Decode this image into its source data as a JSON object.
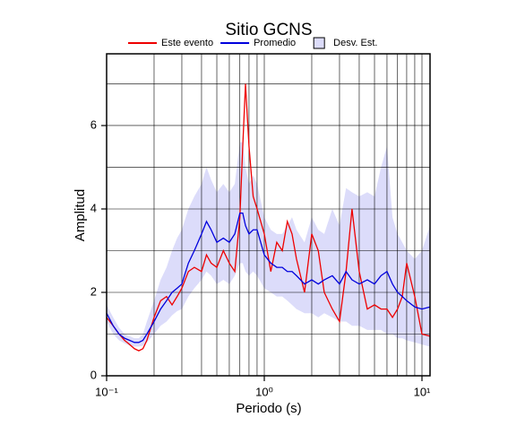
{
  "chart_data": {
    "type": "line",
    "title": "Sitio GCNS",
    "xlabel": "Periodo (s)",
    "ylabel": "Amplitud",
    "xscale": "log",
    "grid": true,
    "xlim": [
      0.1,
      11.25
    ],
    "ylim": [
      0,
      7.72
    ],
    "xticks": [
      {
        "value": 0.1,
        "label": "10⁻¹"
      },
      {
        "value": 1,
        "label": "10⁰"
      },
      {
        "value": 10,
        "label": "10¹"
      }
    ],
    "xminor": [
      0.2,
      0.3,
      0.4,
      0.5,
      0.6,
      0.7,
      0.8,
      0.9,
      2,
      3,
      4,
      5,
      6,
      7,
      8,
      9
    ],
    "yticks": [
      0,
      2,
      4,
      6
    ],
    "yminor": [
      1,
      3,
      5,
      7
    ],
    "x": [
      0.1,
      0.11,
      0.12,
      0.13,
      0.14,
      0.15,
      0.16,
      0.17,
      0.18,
      0.2,
      0.22,
      0.24,
      0.26,
      0.28,
      0.3,
      0.33,
      0.36,
      0.4,
      0.43,
      0.46,
      0.5,
      0.55,
      0.6,
      0.65,
      0.7,
      0.73,
      0.76,
      0.8,
      0.85,
      0.9,
      1.0,
      1.1,
      1.2,
      1.3,
      1.4,
      1.5,
      1.6,
      1.8,
      2.0,
      2.2,
      2.4,
      2.7,
      3.0,
      3.3,
      3.6,
      4.0,
      4.5,
      5.0,
      5.5,
      6.0,
      6.5,
      7.0,
      7.5,
      8.0,
      9.0,
      10,
      11.25
    ],
    "band": {
      "name": "Desv. Est.",
      "color": "#dcdcfa",
      "upper": [
        1.7,
        1.4,
        1.15,
        1.0,
        0.95,
        0.9,
        0.9,
        1.0,
        1.3,
        1.8,
        2.3,
        2.6,
        3.0,
        3.3,
        3.5,
        4.0,
        4.3,
        4.6,
        5.0,
        4.7,
        4.4,
        4.6,
        4.4,
        4.6,
        5.6,
        5.6,
        5.0,
        4.6,
        4.8,
        4.6,
        3.8,
        3.5,
        3.4,
        3.4,
        3.6,
        3.8,
        3.5,
        3.2,
        3.8,
        3.5,
        3.4,
        4.0,
        3.6,
        4.5,
        4.4,
        4.3,
        4.4,
        4.3,
        5.0,
        5.5,
        3.8,
        3.4,
        3.2,
        3.0,
        2.8,
        3.0,
        3.6
      ],
      "lower": [
        1.3,
        1.0,
        0.85,
        0.78,
        0.72,
        0.7,
        0.7,
        0.72,
        0.8,
        1.0,
        1.2,
        1.3,
        1.45,
        1.55,
        1.6,
        1.9,
        2.1,
        2.3,
        2.5,
        2.4,
        2.2,
        2.3,
        2.2,
        2.4,
        2.7,
        2.7,
        2.5,
        2.4,
        2.5,
        2.4,
        2.1,
        2.0,
        1.9,
        1.9,
        1.8,
        1.7,
        1.6,
        1.5,
        1.5,
        1.4,
        1.5,
        1.4,
        1.3,
        1.3,
        1.2,
        1.2,
        1.1,
        1.1,
        1.1,
        1.0,
        1.0,
        0.9,
        0.9,
        0.85,
        0.8,
        0.75,
        0.7
      ]
    },
    "series": [
      {
        "name": "Este evento",
        "color": "#ee0000",
        "values": [
          1.4,
          1.2,
          1.0,
          0.85,
          0.75,
          0.65,
          0.6,
          0.65,
          0.85,
          1.4,
          1.8,
          1.9,
          1.7,
          1.9,
          2.1,
          2.5,
          2.6,
          2.5,
          2.9,
          2.7,
          2.6,
          3.0,
          2.7,
          2.5,
          3.8,
          5.5,
          7.0,
          5.5,
          4.3,
          4.0,
          3.4,
          2.5,
          3.2,
          3.0,
          3.7,
          3.4,
          2.8,
          2.0,
          3.4,
          3.0,
          2.0,
          1.6,
          1.3,
          2.5,
          4.0,
          2.5,
          1.6,
          1.7,
          1.6,
          1.6,
          1.4,
          1.6,
          1.9,
          2.7,
          1.9,
          1.0,
          0.95
        ]
      },
      {
        "name": "Promedio",
        "color": "#0000dd",
        "values": [
          1.5,
          1.2,
          1.0,
          0.9,
          0.85,
          0.8,
          0.8,
          0.85,
          1.0,
          1.3,
          1.6,
          1.8,
          2.0,
          2.1,
          2.2,
          2.7,
          3.0,
          3.4,
          3.7,
          3.5,
          3.2,
          3.3,
          3.2,
          3.4,
          3.9,
          3.9,
          3.6,
          3.4,
          3.5,
          3.5,
          2.9,
          2.7,
          2.6,
          2.6,
          2.5,
          2.5,
          2.4,
          2.2,
          2.3,
          2.2,
          2.3,
          2.4,
          2.2,
          2.5,
          2.3,
          2.2,
          2.3,
          2.2,
          2.4,
          2.5,
          2.2,
          2.0,
          1.9,
          1.8,
          1.65,
          1.6,
          1.65
        ]
      }
    ]
  }
}
